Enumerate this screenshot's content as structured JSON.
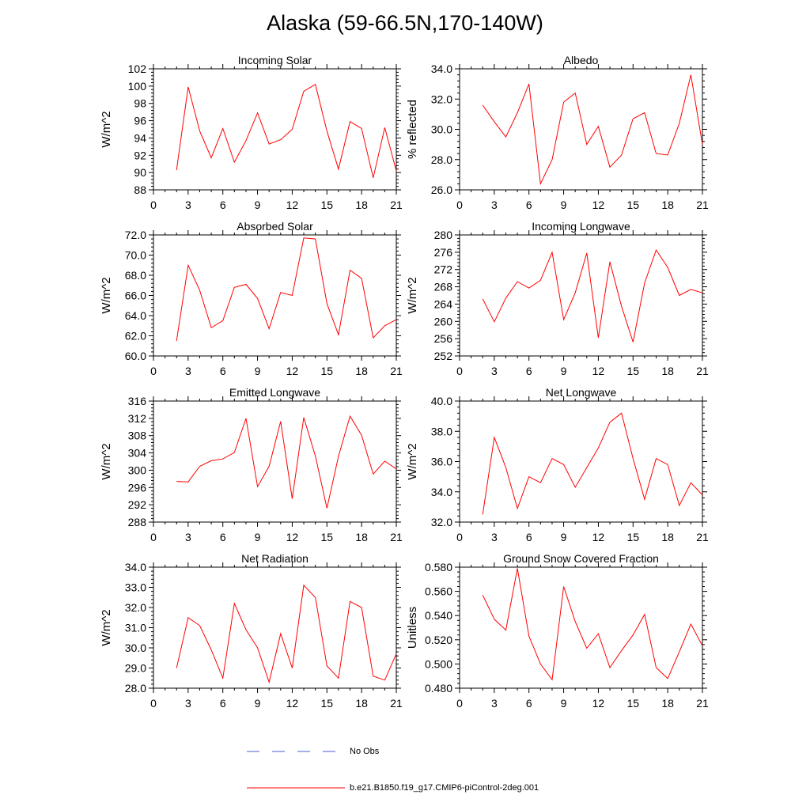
{
  "figure": {
    "title": "Alaska (59-66.5N,170-140W)"
  },
  "legend": {
    "obs": {
      "label": "No Obs",
      "color": "#4a5bd4"
    },
    "model": {
      "label": "b.e21.B1850.f19_g17.CMIP6-piControl-2deg.001",
      "color": "#ff0000"
    }
  },
  "chart_data": [
    {
      "type": "line",
      "title": "Incoming Solar",
      "ylabel": "W/m^2",
      "xlim": [
        0,
        21
      ],
      "ylim": [
        88,
        102
      ],
      "xticks": [
        0,
        3,
        6,
        9,
        12,
        15,
        18,
        21
      ],
      "yticks": [
        88,
        90,
        92,
        94,
        96,
        98,
        100,
        102
      ],
      "ytick_decimals": 0,
      "series": [
        {
          "color": "#ff0000",
          "x": [
            2,
            3,
            4,
            5,
            6,
            7,
            8,
            9,
            10,
            11,
            12,
            13,
            14,
            15,
            16,
            17,
            18,
            19,
            20,
            21
          ],
          "y": [
            90.3,
            99.9,
            94.8,
            91.7,
            95.1,
            91.2,
            93.7,
            96.9,
            93.3,
            93.8,
            95.0,
            99.4,
            100.2,
            94.8,
            90.4,
            95.9,
            95.1,
            89.4,
            95.2,
            90.2
          ]
        }
      ]
    },
    {
      "type": "line",
      "title": "Albedo",
      "ylabel": "% reflected",
      "xlim": [
        0,
        21
      ],
      "ylim": [
        26.0,
        34.0
      ],
      "xticks": [
        0,
        3,
        6,
        9,
        12,
        15,
        18,
        21
      ],
      "yticks": [
        26.0,
        28.0,
        30.0,
        32.0,
        34.0
      ],
      "ytick_decimals": 1,
      "series": [
        {
          "color": "#ff0000",
          "x": [
            2,
            3,
            4,
            5,
            6,
            7,
            8,
            9,
            10,
            11,
            12,
            13,
            14,
            15,
            16,
            17,
            18,
            19,
            20,
            21
          ],
          "y": [
            31.6,
            30.5,
            29.5,
            31.1,
            33.0,
            26.4,
            28.0,
            31.8,
            32.4,
            29.0,
            30.2,
            27.5,
            28.3,
            30.7,
            31.1,
            28.4,
            28.3,
            30.4,
            33.6,
            29.0
          ]
        }
      ]
    },
    {
      "type": "line",
      "title": "Absorbed Solar",
      "ylabel": "W/m^2",
      "xlim": [
        0,
        21
      ],
      "ylim": [
        60.0,
        72.0
      ],
      "xticks": [
        0,
        3,
        6,
        9,
        12,
        15,
        18,
        21
      ],
      "yticks": [
        60.0,
        62.0,
        64.0,
        66.0,
        68.0,
        70.0,
        72.0
      ],
      "ytick_decimals": 1,
      "series": [
        {
          "color": "#ff0000",
          "x": [
            2,
            3,
            4,
            5,
            6,
            7,
            8,
            9,
            10,
            11,
            12,
            13,
            14,
            15,
            16,
            17,
            18,
            19,
            20,
            21
          ],
          "y": [
            61.5,
            69.0,
            66.5,
            62.8,
            63.5,
            66.8,
            67.1,
            65.7,
            62.7,
            66.3,
            66.0,
            71.7,
            71.6,
            65.2,
            62.1,
            68.5,
            67.7,
            61.8,
            63.0,
            63.6
          ]
        }
      ]
    },
    {
      "type": "line",
      "title": "Incoming Longwave",
      "ylabel": "W/m^2",
      "xlim": [
        0,
        21
      ],
      "ylim": [
        252,
        280
      ],
      "xticks": [
        0,
        3,
        6,
        9,
        12,
        15,
        18,
        21
      ],
      "yticks": [
        252,
        256,
        260,
        264,
        268,
        272,
        276,
        280
      ],
      "ytick_decimals": 0,
      "series": [
        {
          "color": "#ff0000",
          "x": [
            2,
            3,
            4,
            5,
            6,
            7,
            8,
            9,
            10,
            11,
            12,
            13,
            14,
            15,
            16,
            17,
            18,
            19,
            20,
            21
          ],
          "y": [
            265.2,
            259.9,
            265.4,
            269.2,
            267.7,
            269.5,
            276.0,
            260.4,
            266.6,
            275.8,
            256.2,
            273.8,
            263.5,
            255.2,
            268.9,
            276.5,
            272.5,
            266.0,
            267.4,
            266.6
          ]
        }
      ]
    },
    {
      "type": "line",
      "title": "Emitted Longwave",
      "ylabel": "W/m^2",
      "xlim": [
        0,
        21
      ],
      "ylim": [
        288,
        316
      ],
      "xticks": [
        0,
        3,
        6,
        9,
        12,
        15,
        18,
        21
      ],
      "yticks": [
        288,
        292,
        296,
        300,
        304,
        308,
        312,
        316
      ],
      "ytick_decimals": 0,
      "series": [
        {
          "color": "#ff0000",
          "x": [
            2,
            3,
            4,
            5,
            6,
            7,
            8,
            9,
            10,
            11,
            12,
            13,
            14,
            15,
            16,
            17,
            18,
            19,
            20,
            21
          ],
          "y": [
            297.4,
            297.3,
            300.9,
            302.2,
            302.6,
            304.1,
            312.0,
            296.2,
            300.9,
            311.3,
            293.4,
            312.2,
            303.3,
            291.2,
            303.2,
            312.5,
            308.1,
            299.1,
            302.1,
            300.3
          ]
        }
      ]
    },
    {
      "type": "line",
      "title": "Net Longwave",
      "ylabel": "W/m^2",
      "xlim": [
        0,
        21
      ],
      "ylim": [
        32.0,
        40.0
      ],
      "xticks": [
        0,
        3,
        6,
        9,
        12,
        15,
        18,
        21
      ],
      "yticks": [
        32.0,
        34.0,
        36.0,
        38.0,
        40.0
      ],
      "ytick_decimals": 1,
      "series": [
        {
          "color": "#ff0000",
          "x": [
            2,
            3,
            4,
            5,
            6,
            7,
            8,
            9,
            10,
            11,
            12,
            13,
            14,
            15,
            16,
            17,
            18,
            19,
            20,
            21
          ],
          "y": [
            32.5,
            37.6,
            35.6,
            32.9,
            35.0,
            34.6,
            36.2,
            35.8,
            34.3,
            35.6,
            36.9,
            38.6,
            39.2,
            36.2,
            33.5,
            36.2,
            35.8,
            33.1,
            34.6,
            33.8
          ]
        }
      ]
    },
    {
      "type": "line",
      "title": "Net Radiation",
      "ylabel": "W/m^2",
      "xlim": [
        0,
        21
      ],
      "ylim": [
        28.0,
        34.0
      ],
      "xticks": [
        0,
        3,
        6,
        9,
        12,
        15,
        18,
        21
      ],
      "yticks": [
        28.0,
        29.0,
        30.0,
        31.0,
        32.0,
        33.0,
        34.0
      ],
      "ytick_decimals": 1,
      "series": [
        {
          "color": "#ff0000",
          "x": [
            2,
            3,
            4,
            5,
            6,
            7,
            8,
            9,
            10,
            11,
            12,
            13,
            14,
            15,
            16,
            17,
            18,
            19,
            20,
            21
          ],
          "y": [
            29.0,
            31.5,
            31.1,
            29.9,
            28.5,
            32.2,
            30.9,
            30.0,
            28.3,
            30.7,
            29.0,
            33.1,
            32.5,
            29.1,
            28.5,
            32.3,
            32.0,
            28.6,
            28.4,
            29.7
          ]
        }
      ]
    },
    {
      "type": "line",
      "title": "Ground Snow Covered Fraction",
      "ylabel": "Unitless",
      "xlim": [
        0,
        21
      ],
      "ylim": [
        0.48,
        0.58
      ],
      "xticks": [
        0,
        3,
        6,
        9,
        12,
        15,
        18,
        21
      ],
      "yticks": [
        0.48,
        0.5,
        0.52,
        0.54,
        0.56,
        0.58
      ],
      "ytick_decimals": 3,
      "series": [
        {
          "color": "#ff0000",
          "x": [
            2,
            3,
            4,
            5,
            6,
            7,
            8,
            9,
            10,
            11,
            12,
            13,
            14,
            15,
            16,
            17,
            18,
            19,
            20,
            21
          ],
          "y": [
            0.557,
            0.537,
            0.528,
            0.579,
            0.523,
            0.5,
            0.487,
            0.564,
            0.535,
            0.513,
            0.525,
            0.497,
            0.511,
            0.524,
            0.541,
            0.497,
            0.488,
            0.51,
            0.533,
            0.515
          ]
        }
      ]
    }
  ]
}
